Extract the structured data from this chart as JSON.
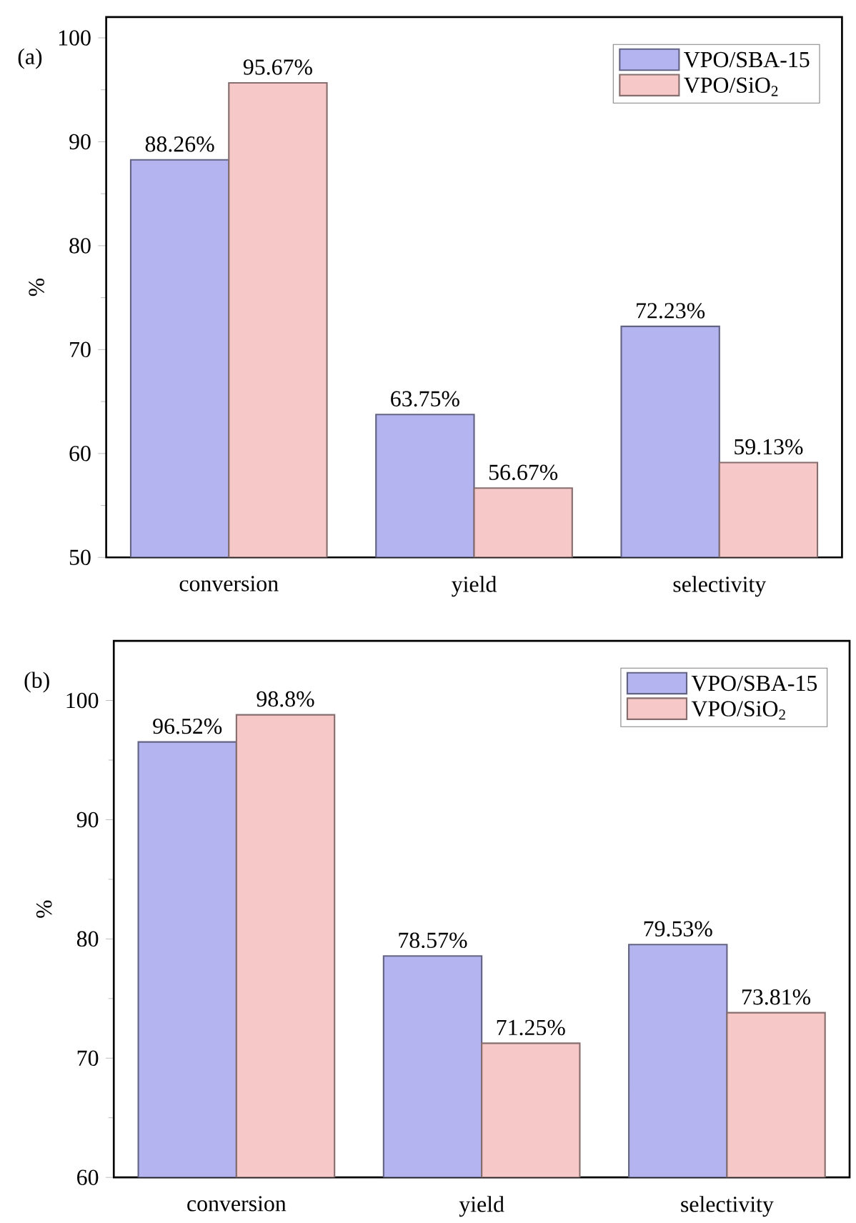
{
  "chart_data": [
    {
      "type": "bar",
      "title": "(a)",
      "ylabel": "%",
      "categories": [
        "conversion",
        "yield",
        "selectivity"
      ],
      "series": [
        {
          "name": "VPO/SBA-15",
          "color": "#b4b4f0",
          "values": [
            88.26,
            63.75,
            72.23
          ],
          "value_labels": [
            "88.26%",
            "63.75%",
            "72.23%"
          ]
        },
        {
          "name": "VPO/SiO$_{2}$",
          "color": "#f6c8c8",
          "values": [
            95.67,
            56.67,
            59.13
          ],
          "value_labels": [
            "95.67%",
            "56.67%",
            "59.13%"
          ]
        }
      ],
      "ylim": [
        50,
        102
      ],
      "yticks": [
        50,
        60,
        70,
        80,
        90,
        100
      ],
      "legend": "top right",
      "grid": false
    },
    {
      "type": "bar",
      "title": "(b)",
      "ylabel": "%",
      "categories": [
        "conversion",
        "yield",
        "selectivity"
      ],
      "series": [
        {
          "name": "VPO/SBA-15",
          "color": "#b4b4f0",
          "values": [
            96.52,
            78.57,
            79.53
          ],
          "value_labels": [
            "96.52%",
            "78.57%",
            "79.53%"
          ]
        },
        {
          "name": "VPO/SiO$_{2}$",
          "color": "#f6c8c8",
          "values": [
            98.8,
            71.25,
            73.81
          ],
          "value_labels": [
            "98.8%",
            "71.25%",
            "73.81%"
          ]
        }
      ],
      "ylim": [
        60,
        105
      ],
      "yticks": [
        60,
        70,
        80,
        90,
        100
      ],
      "legend": "top right",
      "grid": false
    }
  ]
}
